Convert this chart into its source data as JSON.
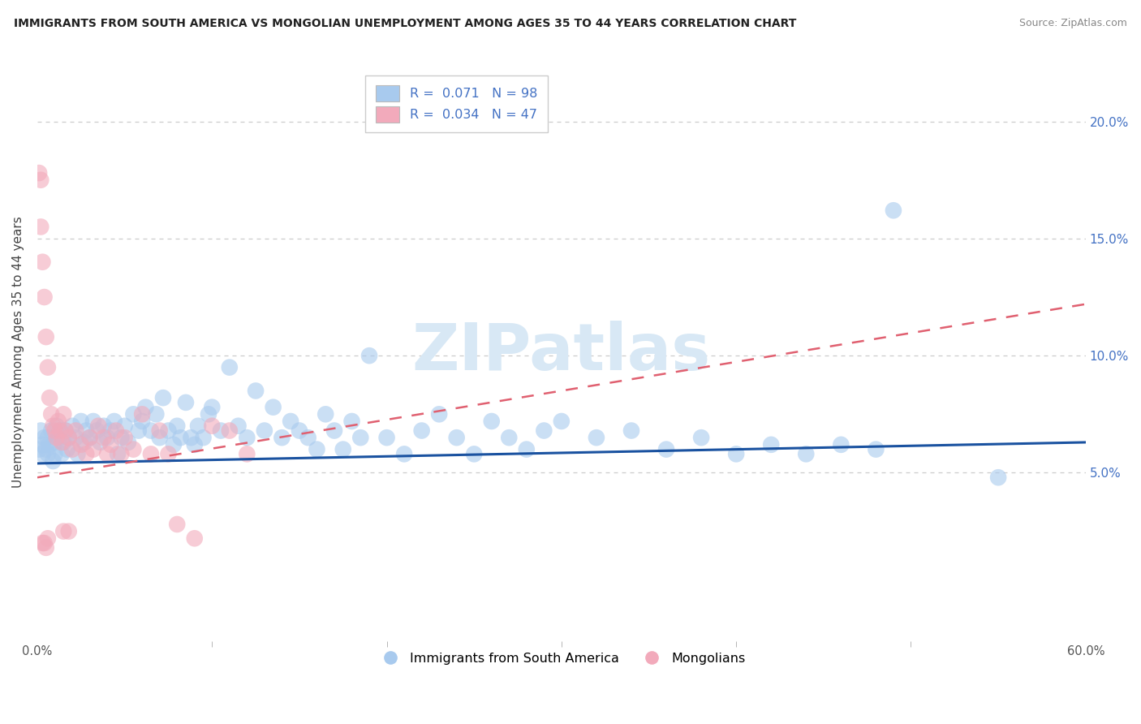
{
  "title": "IMMIGRANTS FROM SOUTH AMERICA VS MONGOLIAN UNEMPLOYMENT AMONG AGES 35 TO 44 YEARS CORRELATION CHART",
  "source": "Source: ZipAtlas.com",
  "ylabel": "Unemployment Among Ages 35 to 44 years",
  "y_tick_values": [
    0.05,
    0.1,
    0.15,
    0.2
  ],
  "y_tick_labels": [
    "5.0%",
    "10.0%",
    "15.0%",
    "20.0%"
  ],
  "x_range": [
    0.0,
    0.6
  ],
  "y_range": [
    -0.022,
    0.225
  ],
  "legend_label_blue": "Immigrants from South America",
  "legend_label_pink": "Mongolians",
  "R_blue": 0.071,
  "N_blue": 98,
  "R_pink": 0.034,
  "N_pink": 47,
  "blue_color": "#A8CAEE",
  "pink_color": "#F2AABB",
  "trend_blue_color": "#1A52A0",
  "trend_pink_color": "#E06070",
  "grid_color": "#CCCCCC",
  "background_color": "#FFFFFF",
  "right_axis_color": "#4472C4",
  "blue_trend_x0": 0.0,
  "blue_trend_y0": 0.054,
  "blue_trend_x1": 0.6,
  "blue_trend_y1": 0.063,
  "pink_trend_x0": 0.0,
  "pink_trend_y0": 0.048,
  "pink_trend_x1": 0.6,
  "pink_trend_y1": 0.122,
  "blue_scatter": [
    [
      0.001,
      0.06
    ],
    [
      0.002,
      0.068
    ],
    [
      0.003,
      0.062
    ],
    [
      0.003,
      0.058
    ],
    [
      0.004,
      0.065
    ],
    [
      0.005,
      0.06
    ],
    [
      0.006,
      0.058
    ],
    [
      0.006,
      0.065
    ],
    [
      0.007,
      0.062
    ],
    [
      0.008,
      0.068
    ],
    [
      0.009,
      0.055
    ],
    [
      0.01,
      0.058
    ],
    [
      0.01,
      0.063
    ],
    [
      0.011,
      0.07
    ],
    [
      0.012,
      0.065
    ],
    [
      0.013,
      0.068
    ],
    [
      0.014,
      0.058
    ],
    [
      0.015,
      0.063
    ],
    [
      0.016,
      0.068
    ],
    [
      0.017,
      0.06
    ],
    [
      0.018,
      0.065
    ],
    [
      0.02,
      0.07
    ],
    [
      0.022,
      0.065
    ],
    [
      0.023,
      0.058
    ],
    [
      0.025,
      0.072
    ],
    [
      0.027,
      0.063
    ],
    [
      0.028,
      0.068
    ],
    [
      0.03,
      0.065
    ],
    [
      0.032,
      0.072
    ],
    [
      0.034,
      0.068
    ],
    [
      0.036,
      0.063
    ],
    [
      0.038,
      0.07
    ],
    [
      0.04,
      0.065
    ],
    [
      0.042,
      0.068
    ],
    [
      0.044,
      0.072
    ],
    [
      0.046,
      0.058
    ],
    [
      0.048,
      0.065
    ],
    [
      0.05,
      0.07
    ],
    [
      0.052,
      0.063
    ],
    [
      0.055,
      0.075
    ],
    [
      0.058,
      0.068
    ],
    [
      0.06,
      0.072
    ],
    [
      0.062,
      0.078
    ],
    [
      0.065,
      0.068
    ],
    [
      0.068,
      0.075
    ],
    [
      0.07,
      0.065
    ],
    [
      0.072,
      0.082
    ],
    [
      0.075,
      0.068
    ],
    [
      0.078,
      0.062
    ],
    [
      0.08,
      0.07
    ],
    [
      0.082,
      0.065
    ],
    [
      0.085,
      0.08
    ],
    [
      0.088,
      0.065
    ],
    [
      0.09,
      0.062
    ],
    [
      0.092,
      0.07
    ],
    [
      0.095,
      0.065
    ],
    [
      0.098,
      0.075
    ],
    [
      0.1,
      0.078
    ],
    [
      0.105,
      0.068
    ],
    [
      0.11,
      0.095
    ],
    [
      0.115,
      0.07
    ],
    [
      0.12,
      0.065
    ],
    [
      0.125,
      0.085
    ],
    [
      0.13,
      0.068
    ],
    [
      0.135,
      0.078
    ],
    [
      0.14,
      0.065
    ],
    [
      0.145,
      0.072
    ],
    [
      0.15,
      0.068
    ],
    [
      0.155,
      0.065
    ],
    [
      0.16,
      0.06
    ],
    [
      0.165,
      0.075
    ],
    [
      0.17,
      0.068
    ],
    [
      0.175,
      0.06
    ],
    [
      0.18,
      0.072
    ],
    [
      0.185,
      0.065
    ],
    [
      0.19,
      0.1
    ],
    [
      0.2,
      0.065
    ],
    [
      0.21,
      0.058
    ],
    [
      0.22,
      0.068
    ],
    [
      0.23,
      0.075
    ],
    [
      0.24,
      0.065
    ],
    [
      0.25,
      0.058
    ],
    [
      0.26,
      0.072
    ],
    [
      0.27,
      0.065
    ],
    [
      0.28,
      0.06
    ],
    [
      0.29,
      0.068
    ],
    [
      0.3,
      0.072
    ],
    [
      0.32,
      0.065
    ],
    [
      0.34,
      0.068
    ],
    [
      0.36,
      0.06
    ],
    [
      0.38,
      0.065
    ],
    [
      0.4,
      0.058
    ],
    [
      0.42,
      0.062
    ],
    [
      0.44,
      0.058
    ],
    [
      0.46,
      0.062
    ],
    [
      0.48,
      0.06
    ],
    [
      0.49,
      0.162
    ],
    [
      0.55,
      0.048
    ]
  ],
  "pink_scatter": [
    [
      0.001,
      0.178
    ],
    [
      0.002,
      0.175
    ],
    [
      0.003,
      0.02
    ],
    [
      0.004,
      0.02
    ],
    [
      0.005,
      0.018
    ],
    [
      0.006,
      0.022
    ],
    [
      0.002,
      0.155
    ],
    [
      0.003,
      0.14
    ],
    [
      0.004,
      0.125
    ],
    [
      0.005,
      0.108
    ],
    [
      0.006,
      0.095
    ],
    [
      0.007,
      0.082
    ],
    [
      0.008,
      0.075
    ],
    [
      0.009,
      0.07
    ],
    [
      0.01,
      0.068
    ],
    [
      0.011,
      0.065
    ],
    [
      0.012,
      0.072
    ],
    [
      0.013,
      0.068
    ],
    [
      0.014,
      0.063
    ],
    [
      0.015,
      0.075
    ],
    [
      0.016,
      0.068
    ],
    [
      0.018,
      0.065
    ],
    [
      0.02,
      0.06
    ],
    [
      0.022,
      0.068
    ],
    [
      0.025,
      0.062
    ],
    [
      0.028,
      0.058
    ],
    [
      0.03,
      0.065
    ],
    [
      0.032,
      0.06
    ],
    [
      0.035,
      0.07
    ],
    [
      0.038,
      0.065
    ],
    [
      0.04,
      0.058
    ],
    [
      0.042,
      0.062
    ],
    [
      0.045,
      0.068
    ],
    [
      0.048,
      0.058
    ],
    [
      0.05,
      0.065
    ],
    [
      0.055,
      0.06
    ],
    [
      0.06,
      0.075
    ],
    [
      0.065,
      0.058
    ],
    [
      0.07,
      0.068
    ],
    [
      0.075,
      0.058
    ],
    [
      0.08,
      0.028
    ],
    [
      0.09,
      0.022
    ],
    [
      0.1,
      0.07
    ],
    [
      0.015,
      0.025
    ],
    [
      0.11,
      0.068
    ],
    [
      0.12,
      0.058
    ],
    [
      0.018,
      0.025
    ]
  ]
}
